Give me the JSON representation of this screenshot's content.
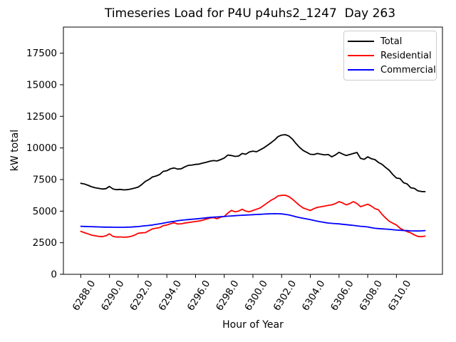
{
  "figure": {
    "title": "Timeseries Load for P4U p4uhs2_1247  Day 263",
    "xlabel": "Hour of Year",
    "ylabel": "kW total"
  },
  "legend": {
    "position": "upper right",
    "items": [
      {
        "label": "Total",
        "color": "#000000"
      },
      {
        "label": "Residential",
        "color": "#ff0000"
      },
      {
        "label": "Commercial",
        "color": "#0000ff"
      }
    ]
  },
  "chart_data": {
    "type": "line",
    "title": "Timeseries Load for P4U p4uhs2_1247  Day 263",
    "xlabel": "Hour of Year",
    "ylabel": "kW total",
    "grid": false,
    "legend_position": "upper right",
    "xlim": [
      6286.79,
      6313.21
    ],
    "ylim": [
      0,
      19565
    ],
    "xticks": [
      6288,
      6290,
      6292,
      6294,
      6296,
      6298,
      6300,
      6302,
      6304,
      6306,
      6308,
      6310
    ],
    "yticks": [
      0,
      2500,
      5000,
      7500,
      10000,
      12500,
      15000,
      17500
    ],
    "x": [
      6288,
      6288.25,
      6288.5,
      6288.75,
      6289,
      6289.25,
      6289.5,
      6289.75,
      6290,
      6290.25,
      6290.5,
      6290.75,
      6291,
      6291.25,
      6291.5,
      6291.75,
      6292,
      6292.25,
      6292.5,
      6292.75,
      6293,
      6293.25,
      6293.5,
      6293.75,
      6294,
      6294.25,
      6294.5,
      6294.75,
      6295,
      6295.25,
      6295.5,
      6295.75,
      6296,
      6296.25,
      6296.5,
      6296.75,
      6297,
      6297.25,
      6297.5,
      6297.75,
      6298,
      6298.25,
      6298.5,
      6298.75,
      6299,
      6299.25,
      6299.5,
      6299.75,
      6300,
      6300.25,
      6300.5,
      6300.75,
      6301,
      6301.25,
      6301.5,
      6301.75,
      6302,
      6302.25,
      6302.5,
      6302.75,
      6303,
      6303.25,
      6303.5,
      6303.75,
      6304,
      6304.25,
      6304.5,
      6304.75,
      6305,
      6305.25,
      6305.5,
      6305.75,
      6306,
      6306.25,
      6306.5,
      6306.75,
      6307,
      6307.25,
      6307.5,
      6307.75,
      6308,
      6308.25,
      6308.5,
      6308.75,
      6309,
      6309.25,
      6309.5,
      6309.75,
      6310,
      6310.25,
      6310.5,
      6310.75,
      6311,
      6311.25,
      6311.5,
      6311.75,
      6312
    ],
    "series": [
      {
        "name": "Total",
        "color": "#000000",
        "values": [
          7200,
          7150,
          7050,
          6930,
          6850,
          6800,
          6750,
          6780,
          6950,
          6750,
          6700,
          6720,
          6680,
          6700,
          6750,
          6820,
          6900,
          7100,
          7350,
          7500,
          7700,
          7780,
          7900,
          8150,
          8200,
          8350,
          8420,
          8330,
          8350,
          8500,
          8620,
          8650,
          8700,
          8720,
          8800,
          8870,
          8950,
          9000,
          8970,
          9080,
          9200,
          9440,
          9400,
          9330,
          9360,
          9560,
          9500,
          9680,
          9750,
          9700,
          9850,
          10000,
          10200,
          10400,
          10620,
          10900,
          11020,
          11050,
          10950,
          10700,
          10350,
          10050,
          9800,
          9650,
          9500,
          9480,
          9560,
          9500,
          9450,
          9480,
          9300,
          9450,
          9650,
          9520,
          9400,
          9480,
          9560,
          9640,
          9180,
          9100,
          9300,
          9150,
          9080,
          8850,
          8700,
          8450,
          8230,
          7900,
          7620,
          7580,
          7250,
          7150,
          6850,
          6800,
          6600,
          6550,
          6540
        ]
      },
      {
        "name": "Residential",
        "color": "#ff0000",
        "values": [
          3400,
          3300,
          3200,
          3100,
          3050,
          3000,
          2980,
          3050,
          3200,
          3000,
          2950,
          2960,
          2940,
          2950,
          3000,
          3100,
          3250,
          3280,
          3300,
          3450,
          3600,
          3650,
          3700,
          3850,
          3900,
          4000,
          4080,
          3980,
          4000,
          4060,
          4100,
          4140,
          4180,
          4220,
          4280,
          4370,
          4450,
          4480,
          4400,
          4520,
          4570,
          4850,
          5050,
          4950,
          5000,
          5150,
          5000,
          4950,
          5050,
          5150,
          5250,
          5450,
          5650,
          5850,
          6000,
          6200,
          6250,
          6260,
          6150,
          5950,
          5700,
          5450,
          5250,
          5150,
          5050,
          5200,
          5300,
          5350,
          5400,
          5450,
          5500,
          5600,
          5750,
          5650,
          5500,
          5600,
          5750,
          5600,
          5350,
          5450,
          5550,
          5400,
          5200,
          5100,
          4750,
          4450,
          4200,
          4050,
          3900,
          3650,
          3500,
          3380,
          3280,
          3120,
          3000,
          2980,
          3020
        ]
      },
      {
        "name": "Commercial",
        "color": "#0000ff",
        "values": [
          3800,
          3790,
          3780,
          3770,
          3760,
          3750,
          3740,
          3735,
          3730,
          3725,
          3720,
          3720,
          3720,
          3730,
          3740,
          3760,
          3780,
          3810,
          3840,
          3870,
          3900,
          3950,
          4000,
          4050,
          4100,
          4150,
          4190,
          4240,
          4280,
          4310,
          4330,
          4360,
          4380,
          4410,
          4440,
          4470,
          4500,
          4520,
          4540,
          4560,
          4580,
          4600,
          4620,
          4640,
          4660,
          4675,
          4690,
          4705,
          4720,
          4735,
          4750,
          4765,
          4780,
          4790,
          4800,
          4790,
          4780,
          4740,
          4700,
          4630,
          4550,
          4490,
          4430,
          4380,
          4330,
          4260,
          4200,
          4150,
          4100,
          4060,
          4030,
          4010,
          3990,
          3960,
          3930,
          3900,
          3870,
          3835,
          3800,
          3775,
          3750,
          3695,
          3640,
          3620,
          3600,
          3580,
          3560,
          3530,
          3500,
          3485,
          3470,
          3455,
          3440,
          3435,
          3430,
          3440,
          3460
        ]
      }
    ]
  }
}
